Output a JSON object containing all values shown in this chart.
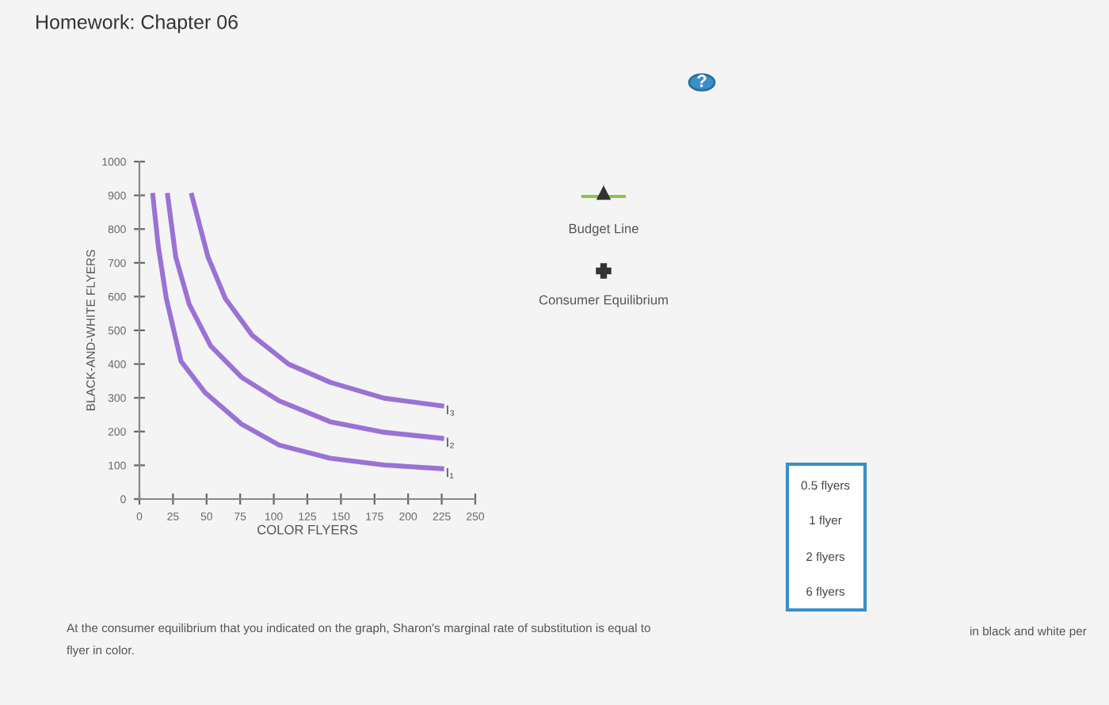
{
  "chart_data": {
    "type": "line",
    "title": "Homework: Chapter 06",
    "xlabel": "COLOR FLYERS",
    "ylabel": "BLACK-AND-WHITE FLYERS",
    "xlim": [
      0,
      250
    ],
    "ylim": [
      0,
      1000
    ],
    "xticks": [
      0,
      25,
      50,
      75,
      100,
      125,
      150,
      175,
      200,
      225,
      250
    ],
    "yticks": [
      0,
      100,
      200,
      300,
      400,
      500,
      600,
      700,
      800,
      900,
      1000
    ],
    "grid": false,
    "marker": "none",
    "line_style": "solid",
    "legend": false,
    "series": [
      {
        "name": "I₁",
        "color": "#9b72d4",
        "x": [
          10,
          14,
          20,
          31,
          49,
          76,
          104,
          142,
          182,
          225
        ],
        "values": [
          900,
          750,
          595,
          408,
          315,
          222,
          160,
          121,
          101,
          90
        ]
      },
      {
        "name": "I₂",
        "color": "#9b72d4",
        "x": [
          21,
          27,
          37,
          53,
          76,
          104,
          142,
          182,
          225
        ],
        "values": [
          900,
          718,
          578,
          454,
          361,
          291,
          229,
          198,
          180
        ]
      },
      {
        "name": "I₃",
        "color": "#9b72d4",
        "x": [
          39,
          51,
          64,
          84,
          111,
          142,
          182,
          225
        ],
        "values": [
          900,
          718,
          594,
          485,
          400,
          346,
          299,
          276
        ]
      }
    ],
    "annotations": [
      "?",
      "Budget Line",
      "Consumer Equilibrium",
      "0.5 flyers",
      "1 flyer",
      "2 flyers",
      "6 flyers",
      "At the consumer equilibrium that you indicated on the graph, Sharon's marginal rate of substitution is equal to",
      "in black and white per",
      "flyer in color."
    ]
  }
}
